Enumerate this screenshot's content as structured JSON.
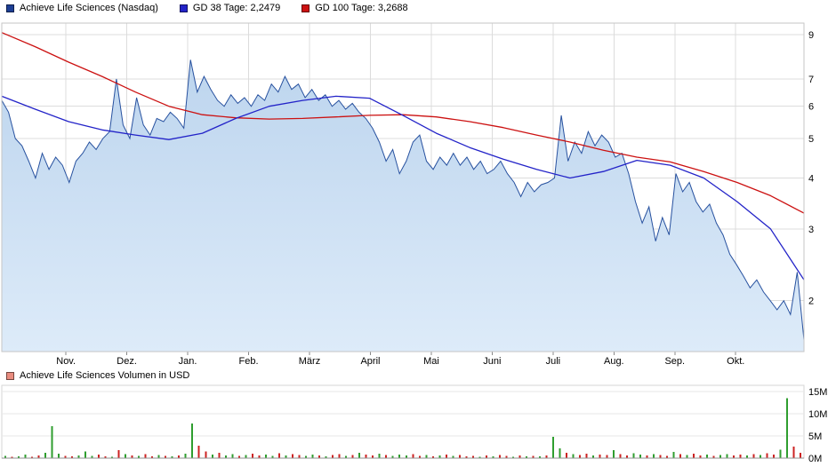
{
  "legend": {
    "price": {
      "label": "Achieve Life Sciences (Nasdaq)",
      "color": "#1d3f94"
    },
    "ma38": {
      "label": "GD 38 Tage: 2,2479",
      "color": "#2323c8"
    },
    "ma100": {
      "label": "GD 100 Tage: 3,2688",
      "color": "#cc1111"
    }
  },
  "volume_legend": {
    "label": "Achieve Life Sciences Volumen in USD",
    "color": "#e98c7f"
  },
  "chart_data": {
    "type": "line",
    "title": "Achieve Life Sciences (Nasdaq)",
    "x_axis": {
      "labels": [
        "Nov.",
        "Dez.",
        "Jan.",
        "Feb.",
        "März",
        "April",
        "Mai",
        "Juni",
        "Juli",
        "Aug.",
        "Sep.",
        "Okt."
      ],
      "first_tick_frac": 0.08,
      "tick_step_frac": 0.0759
    },
    "y_axis": {
      "scale": "log",
      "min": 1.5,
      "max": 9.6,
      "ticks": [
        9,
        7,
        6,
        5,
        4,
        3,
        2
      ],
      "grid": true,
      "position": "right"
    },
    "series": [
      {
        "name": "Achieve Life Sciences (Nasdaq)",
        "type": "area",
        "color": "#27519f",
        "fill_top": "#bdd5ee",
        "fill_bottom": "#ddebf9",
        "values": [
          6.2,
          5.8,
          5.0,
          4.8,
          4.4,
          4.0,
          4.6,
          4.2,
          4.5,
          4.3,
          3.9,
          4.4,
          4.6,
          4.9,
          4.7,
          5.0,
          5.2,
          7.0,
          5.4,
          5.0,
          6.3,
          5.4,
          5.1,
          5.6,
          5.5,
          5.8,
          5.6,
          5.3,
          7.8,
          6.5,
          7.1,
          6.6,
          6.2,
          6.0,
          6.4,
          6.1,
          6.3,
          6.0,
          6.4,
          6.2,
          6.8,
          6.5,
          7.1,
          6.6,
          6.8,
          6.3,
          6.6,
          6.2,
          6.4,
          6.0,
          6.2,
          5.9,
          6.1,
          5.8,
          5.6,
          5.3,
          4.9,
          4.4,
          4.7,
          4.1,
          4.4,
          4.9,
          5.1,
          4.4,
          4.2,
          4.5,
          4.3,
          4.6,
          4.3,
          4.5,
          4.2,
          4.4,
          4.1,
          4.2,
          4.4,
          4.1,
          3.9,
          3.6,
          3.9,
          3.7,
          3.85,
          3.9,
          4.0,
          5.7,
          4.4,
          4.9,
          4.6,
          5.2,
          4.8,
          5.1,
          4.9,
          4.5,
          4.6,
          4.1,
          3.5,
          3.1,
          3.4,
          2.8,
          3.2,
          2.9,
          4.1,
          3.7,
          3.9,
          3.5,
          3.3,
          3.45,
          3.1,
          2.9,
          2.6,
          2.45,
          2.3,
          2.15,
          2.25,
          2.1,
          2.0,
          1.9,
          2.0,
          1.85,
          2.35,
          1.6
        ]
      },
      {
        "name": "GD 38 Tage",
        "current_value": "2,2479",
        "type": "line",
        "color": "#2323c8",
        "values": [
          6.35,
          5.9,
          5.5,
          5.25,
          5.1,
          4.97,
          5.15,
          5.6,
          6.0,
          6.2,
          6.35,
          6.28,
          5.7,
          5.15,
          4.75,
          4.45,
          4.2,
          4.0,
          4.15,
          4.42,
          4.3,
          4.0,
          3.5,
          3.0,
          2.25
        ]
      },
      {
        "name": "GD 100 Tage",
        "current_value": "3,2688",
        "type": "line",
        "color": "#cc1111",
        "values": [
          9.1,
          8.4,
          7.7,
          7.1,
          6.5,
          6.0,
          5.72,
          5.62,
          5.58,
          5.6,
          5.65,
          5.7,
          5.72,
          5.65,
          5.5,
          5.32,
          5.1,
          4.9,
          4.68,
          4.5,
          4.38,
          4.15,
          3.9,
          3.62,
          3.28
        ]
      }
    ],
    "volume": {
      "name": "Achieve Life Sciences Volumen in USD",
      "unit": "USD (Millionen)",
      "max": 15,
      "y_ticks": [
        {
          "label": "15M",
          "value": 15
        },
        {
          "label": "10M",
          "value": 10
        },
        {
          "label": "5M",
          "value": 5
        },
        {
          "label": "0M",
          "value": 0
        }
      ],
      "up_color": "#2f9e2f",
      "down_color": "#cc2222",
      "values": [
        0.5,
        0.3,
        0.4,
        0.8,
        0.3,
        0.6,
        1.2,
        7.2,
        1.0,
        0.5,
        0.4,
        0.6,
        1.5,
        0.5,
        0.8,
        0.4,
        0.3,
        1.8,
        0.9,
        0.6,
        0.5,
        0.9,
        0.4,
        0.7,
        0.5,
        0.4,
        0.6,
        1.0,
        7.8,
        2.8,
        1.5,
        0.8,
        1.2,
        0.6,
        0.9,
        0.5,
        0.7,
        1.0,
        0.6,
        0.8,
        0.5,
        1.1,
        0.6,
        0.9,
        0.7,
        0.5,
        0.8,
        0.6,
        0.4,
        0.7,
        0.9,
        0.5,
        0.7,
        1.2,
        0.8,
        0.6,
        1.0,
        0.7,
        0.5,
        0.8,
        0.6,
        0.9,
        0.5,
        0.7,
        0.4,
        0.6,
        0.8,
        0.5,
        0.7,
        0.4,
        0.5,
        0.3,
        0.6,
        0.4,
        0.7,
        0.5,
        0.3,
        0.6,
        0.4,
        0.5,
        0.4,
        0.6,
        4.8,
        2.2,
        1.2,
        0.9,
        0.7,
        1.0,
        0.6,
        0.8,
        0.7,
        1.8,
        0.9,
        0.6,
        1.1,
        0.8,
        0.6,
        0.9,
        0.7,
        0.5,
        1.4,
        0.9,
        0.7,
        1.0,
        0.6,
        0.8,
        0.5,
        0.7,
        0.9,
        0.6,
        0.8,
        0.6,
        0.9,
        0.7,
        1.1,
        0.8,
        1.9,
        13.5,
        2.6,
        1.2
      ],
      "directions": "grggrrgggrrgggrrgrgrgrrgrgrggrrgrggrgrrggrgrrggrgrrgrgrrgrgggrrgrgrgrrrgrgrrgrgrgrggrgrrgrrgrrggrgrrgrgrrgrggrrgrgrrggrr"
    }
  }
}
